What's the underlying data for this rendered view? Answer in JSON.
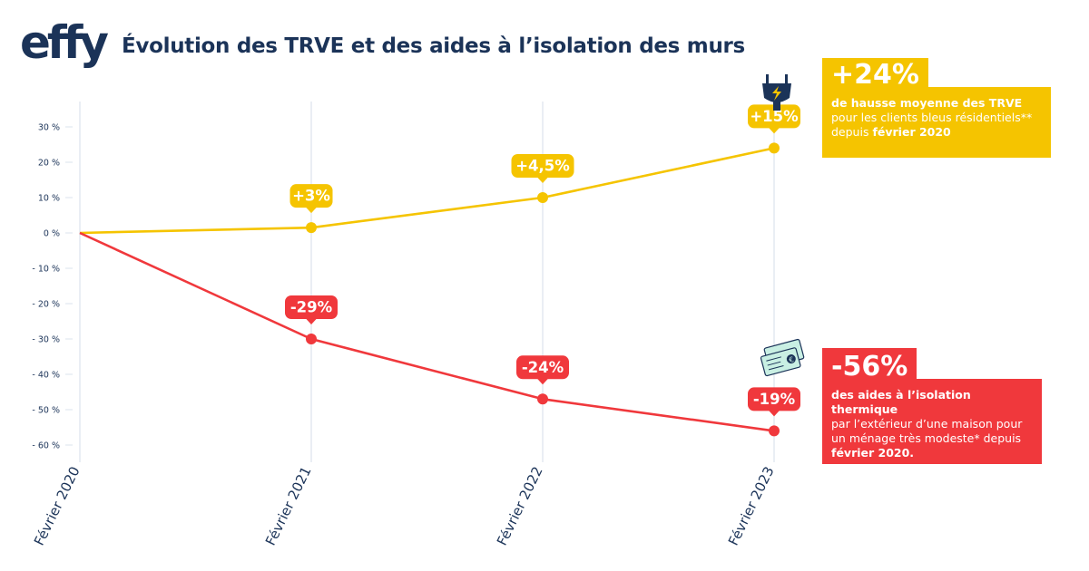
{
  "logo": {
    "text": "effy"
  },
  "title": "Évolution des TRVE et des aides à l’isolation des murs",
  "colors": {
    "trve": "#f5c400",
    "aides": "#f0383c",
    "axis": "#1b3358",
    "grid": "#dbe3ec"
  },
  "icons": {
    "trve": "plug-icon",
    "aides": "banknotes-icon"
  },
  "chart_data": {
    "type": "line",
    "title": "Évolution des TRVE et des aides à l’isolation des murs",
    "x": [
      "Février 2020",
      "Février 2021",
      "Février 2022",
      "Février 2023"
    ],
    "y_ticks": [
      30,
      20,
      10,
      0,
      -10,
      -20,
      -30,
      -40,
      -50,
      -60
    ],
    "y_tick_labels": [
      "30 %",
      "20 %",
      "10 %",
      "0 %",
      "- 10 %",
      "- 20 %",
      "- 30 %",
      "- 40 %",
      "- 50 %",
      "- 60 %"
    ],
    "ylim": [
      -65,
      32
    ],
    "grid": "vertical",
    "series": [
      {
        "values": [
          0,
          1.5,
          10,
          24
        ],
        "labels": [
          "",
          "+3%",
          "+4,5%",
          "+15%"
        ]
      },
      {
        "values": [
          0,
          -30,
          -47,
          -56
        ],
        "labels": [
          "",
          "-29%",
          "-24%",
          "-19%"
        ]
      }
    ]
  },
  "callouts": {
    "trve": {
      "big": "+24%",
      "line1": "de hausse moyenne des TRVE",
      "line2": "pour les clients bleus résidentiels**",
      "line3_pre": "depuis ",
      "line3_bold": "février 2020"
    },
    "aides": {
      "big": "-56%",
      "line1": "des aides à l’isolation thermique",
      "line2": "par l’extérieur d’une maison pour",
      "line3": "un ménage très modeste* depuis",
      "line4": "février 2020."
    }
  }
}
